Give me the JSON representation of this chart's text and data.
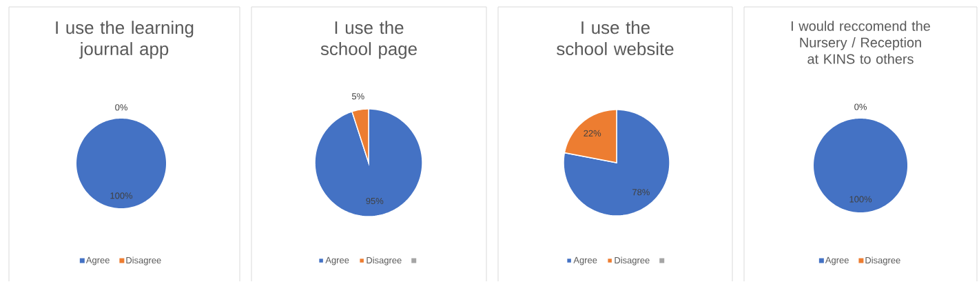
{
  "chart_data": [
    {
      "type": "pie",
      "title": "I use the learning journal app",
      "categories": [
        "Agree",
        "Disagree"
      ],
      "values": [
        100,
        0
      ],
      "value_labels": [
        "100%",
        "0%"
      ],
      "colors": [
        "#4472c4",
        "#ed7d31"
      ],
      "legend": "bottom"
    },
    {
      "type": "pie",
      "title": "I use the school page",
      "categories": [
        "Agree",
        "Disagree",
        null
      ],
      "values": [
        95,
        5,
        0
      ],
      "value_labels": [
        "95%",
        "5%",
        null
      ],
      "colors": [
        "#4472c4",
        "#ed7d31",
        "#a5a5a5"
      ],
      "legend": "bottom"
    },
    {
      "type": "pie",
      "title": "I use the school website",
      "categories": [
        "Agree",
        "Disagree",
        null
      ],
      "values": [
        78,
        22,
        0
      ],
      "value_labels": [
        "78%",
        "22%",
        null
      ],
      "colors": [
        "#4472c4",
        "#ed7d31",
        "#a5a5a5"
      ],
      "legend": "bottom"
    },
    {
      "type": "pie",
      "title": "I would reccomend the Nursery / Reception at KINS to others",
      "categories": [
        "Agree",
        "Disagree"
      ],
      "values": [
        100,
        0
      ],
      "value_labels": [
        "100%",
        "0%"
      ],
      "colors": [
        "#4472c4",
        "#ed7d31"
      ],
      "legend": "bottom"
    }
  ]
}
